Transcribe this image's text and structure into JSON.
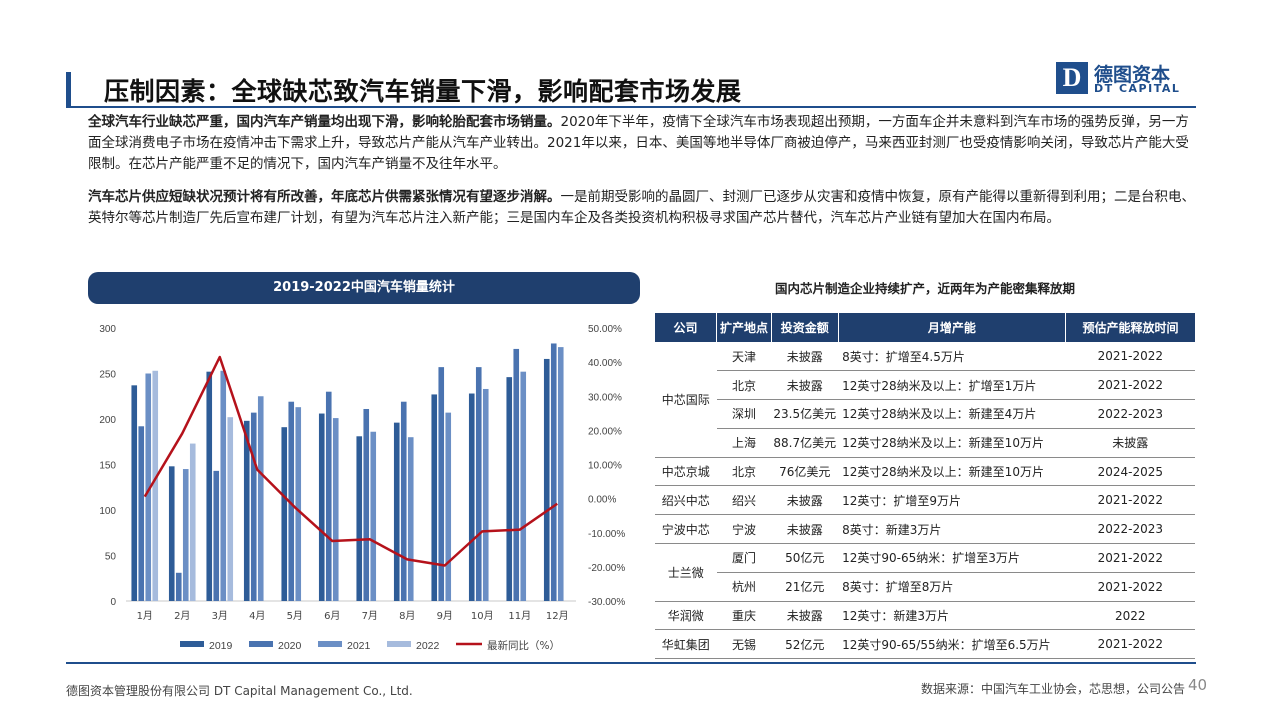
{
  "title": "压制因素：全球缺芯致汽车销量下滑，影响配套市场发展",
  "logo": {
    "cn": "德图资本",
    "en": "DT CAPITAL",
    "mark": "D"
  },
  "paragraphs": [
    {
      "bold": "全球汽车行业缺芯严重，国内汽车产销量均出现下滑，影响轮胎配套市场销量。",
      "text": "2020年下半年，疫情下全球汽车市场表现超出预期，一方面车企并未意料到汽车市场的强势反弹，另一方面全球消费电子市场在疫情冲击下需求上升，导致芯片产能从汽车产业转出。2021年以来，日本、美国等地半导体厂商被迫停产，马来西亚封测厂也受疫情影响关闭，导致芯片产能大受限制。在芯片产能严重不足的情况下，国内汽车产销量不及往年水平。"
    },
    {
      "bold": "汽车芯片供应短缺状况预计将有所改善，年底芯片供需紧张情况有望逐步消解。",
      "text": "一是前期受影响的晶圆厂、封测厂已逐步从灾害和疫情中恢复，原有产能得以重新得到利用；二是台积电、英特尔等芯片制造厂先后宣布建厂计划，有望为汽车芯片注入新产能；三是国内车企及各类投资机构积极寻求国产芯片替代，汽车芯片产业链有望加大在国内布局。"
    }
  ],
  "chart_header": "2019-2022中国汽车销量统计",
  "chart_data": {
    "type": "bar",
    "categories": [
      "1月",
      "2月",
      "3月",
      "4月",
      "5月",
      "6月",
      "7月",
      "8月",
      "9月",
      "10月",
      "11月",
      "12月"
    ],
    "series": [
      {
        "name": "2019",
        "color": "#2e5c97",
        "values": [
          237,
          148,
          252,
          198,
          191,
          206,
          181,
          196,
          227,
          228,
          246,
          266
        ]
      },
      {
        "name": "2020",
        "color": "#4a73b0",
        "values": [
          192,
          31,
          143,
          207,
          219,
          230,
          211,
          219,
          257,
          257,
          277,
          283
        ]
      },
      {
        "name": "2021",
        "color": "#6b8fc5",
        "values": [
          250,
          145,
          253,
          225,
          213,
          201,
          186,
          180,
          207,
          233,
          252,
          279
        ]
      },
      {
        "name": "2022",
        "color": "#a6bbdd",
        "values": [
          253,
          173,
          202,
          null,
          null,
          null,
          null,
          null,
          null,
          null,
          null,
          null
        ]
      }
    ],
    "line": {
      "name": "最新同比（%）",
      "color": "#b5121b",
      "values": [
        0.6,
        19.1,
        41.5,
        8.5,
        -2.5,
        -12.4,
        -11.9,
        -17.8,
        -19.6,
        -9.6,
        -9.1,
        -1.5
      ]
    },
    "ylim": [
      0,
      300
    ],
    "yticks": [
      "0",
      "50",
      "100",
      "150",
      "200",
      "250",
      "300"
    ],
    "y2lim": [
      -30,
      50
    ],
    "y2ticks": [
      "-30.00%",
      "-20.00%",
      "-10.00%",
      "0.00%",
      "10.00%",
      "20.00%",
      "30.00%",
      "40.00%",
      "50.00%"
    ],
    "legend_position": "bottom",
    "grid": false
  },
  "table": {
    "title": "国内芯片制造企业持续扩产，近两年为产能密集释放期",
    "headers": [
      "公司",
      "扩产地点",
      "投资金额",
      "月增产能",
      "预估产能释放时间"
    ],
    "groups": [
      {
        "company": "中芯国际",
        "rows": [
          [
            "天津",
            "未披露",
            "8英寸：扩增至4.5万片",
            "2021-2022"
          ],
          [
            "北京",
            "未披露",
            "12英寸28纳米及以上：扩增至1万片",
            "2021-2022"
          ],
          [
            "深圳",
            "23.5亿美元",
            "12英寸28纳米及以上：新建至4万片",
            "2022-2023"
          ],
          [
            "上海",
            "88.7亿美元",
            "12英寸28纳米及以上：新建至10万片",
            "未披露"
          ]
        ]
      },
      {
        "company": "中芯京城",
        "rows": [
          [
            "北京",
            "76亿美元",
            "12英寸28纳米及以上：新建至10万片",
            "2024-2025"
          ]
        ]
      },
      {
        "company": "绍兴中芯",
        "rows": [
          [
            "绍兴",
            "未披露",
            "12英寸：扩增至9万片",
            "2021-2022"
          ]
        ]
      },
      {
        "company": "宁波中芯",
        "rows": [
          [
            "宁波",
            "未披露",
            "8英寸：新建3万片",
            "2022-2023"
          ]
        ]
      },
      {
        "company": "士兰微",
        "rows": [
          [
            "厦门",
            "50亿元",
            "12英寸90-65纳米：扩增至3万片",
            "2021-2022"
          ],
          [
            "杭州",
            "21亿元",
            "8英寸：扩增至8万片",
            "2021-2022"
          ]
        ]
      },
      {
        "company": "华润微",
        "rows": [
          [
            "重庆",
            "未披露",
            "12英寸：新建3万片",
            "2022"
          ]
        ]
      },
      {
        "company": "华虹集团",
        "rows": [
          [
            "无锡",
            "52亿元",
            "12英寸90-65/55纳米：扩增至6.5万片",
            "2021-2022"
          ]
        ]
      }
    ]
  },
  "footer": {
    "left": "德图资本管理股份有限公司  DT Capital Management Co., Ltd.",
    "right": "数据来源：中国汽车工业协会，芯思想，公司公告",
    "page": "40"
  }
}
